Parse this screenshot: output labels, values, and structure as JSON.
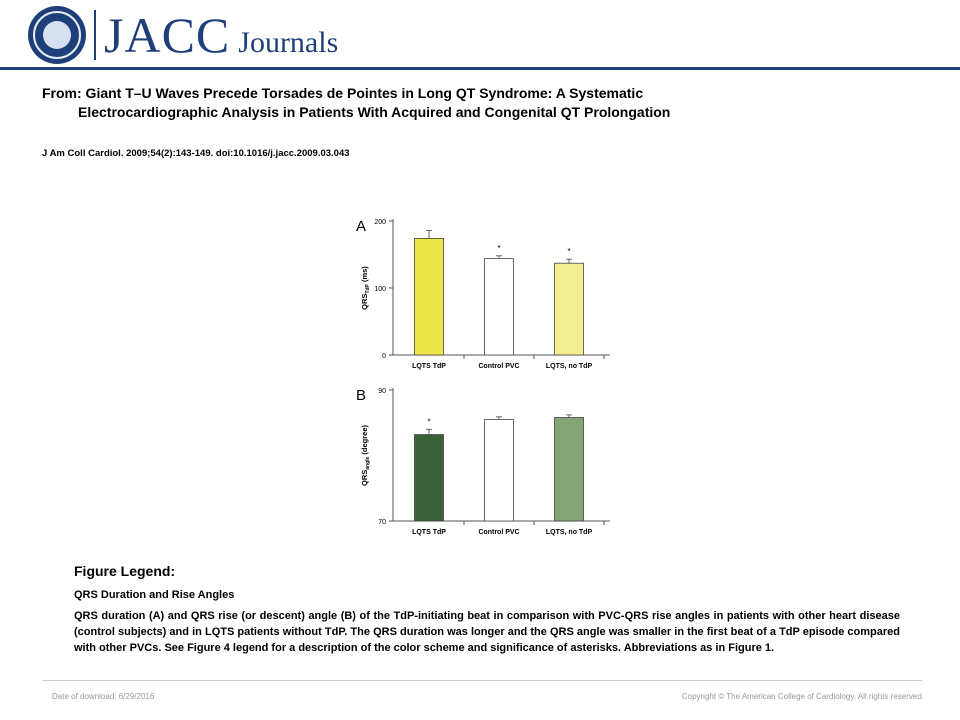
{
  "header": {
    "logo_text_big": "JACC",
    "logo_text_small": "Journals",
    "brand_color": "#1f3f7a"
  },
  "article": {
    "from_line1": "From: Giant T–U Waves Precede Torsades de Pointes in Long QT Syndrome: A Systematic",
    "from_line2": "Electrocardiographic Analysis in Patients With Acquired and Congenital QT Prolongation",
    "citation": "J Am Coll Cardiol. 2009;54(2):143-149. doi:10.1016/j.jacc.2009.03.043"
  },
  "chart_data": [
    {
      "type": "bar",
      "panel_label": "A",
      "ylabel_main": "QRS",
      "ylabel_sub": "TdP",
      "ylabel_unit": " (ms)",
      "ylim": [
        0,
        200
      ],
      "yticks": [
        "0",
        "100",
        "200"
      ],
      "categories": [
        "LQTS TdP",
        "Control PVC",
        "LQTS, no TdP"
      ],
      "values": [
        174,
        144,
        137
      ],
      "errors": [
        12,
        4,
        6
      ],
      "asterisks": [
        "",
        "*",
        "*"
      ],
      "colors": [
        "#ede84a",
        "#ffffff",
        "#f3ee90"
      ]
    },
    {
      "type": "bar",
      "panel_label": "B",
      "ylabel_main": "QRS",
      "ylabel_sub": "angle",
      "ylabel_unit": " (degree)",
      "ylim": [
        70,
        90
      ],
      "yticks": [
        "70",
        "90"
      ],
      "categories": [
        "LQTS TdP",
        "Control PVC",
        "LQTS, no TdP"
      ],
      "values": [
        83.2,
        85.5,
        85.8
      ],
      "errors": [
        0.8,
        0.4,
        0.4
      ],
      "asterisks": [
        "*",
        "",
        ""
      ],
      "colors": [
        "#3a6137",
        "#ffffff",
        "#84a677"
      ]
    }
  ],
  "legend": {
    "title": "Figure Legend:",
    "caption_title": "QRS Duration and Rise Angles",
    "caption_body": "QRS duration (A) and QRS rise (or descent) angle (B) of the TdP-initiating beat in comparison with PVC-QRS rise angles in patients with other heart disease (control subjects) and in LQTS patients without TdP. The QRS duration was longer and the QRS angle was smaller in the first beat of a TdP episode compared with other PVCs. See Figure 4 legend for a description of the color scheme and significance of asterisks. Abbreviations as in Figure 1."
  },
  "footer": {
    "date": "Date of download: 6/29/2016",
    "copyright": "Copyright © The American College of Cardiology. All rights reserved."
  }
}
